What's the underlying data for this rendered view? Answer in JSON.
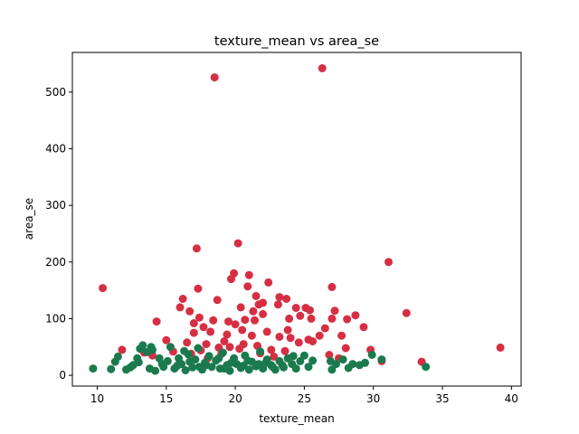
{
  "chart_data": {
    "type": "scatter",
    "title": "texture_mean vs area_se",
    "xlabel": "texture_mean",
    "ylabel": "area_se",
    "xlim": [
      8.2,
      40.7
    ],
    "ylim": [
      -19,
      570
    ],
    "xticks": [
      10,
      15,
      20,
      25,
      30,
      35,
      40
    ],
    "yticks": [
      0,
      100,
      200,
      300,
      400,
      500
    ],
    "grid": false,
    "series": [
      {
        "color": "#d62f43",
        "points": [
          [
            18.5,
            526
          ],
          [
            26.3,
            542
          ],
          [
            20.2,
            233
          ],
          [
            17.2,
            224
          ],
          [
            31.1,
            200
          ],
          [
            19.9,
            180
          ],
          [
            19.7,
            170
          ],
          [
            21.0,
            177
          ],
          [
            10.4,
            154
          ],
          [
            17.3,
            153
          ],
          [
            20.9,
            157
          ],
          [
            22.4,
            164
          ],
          [
            27.0,
            156
          ],
          [
            16.2,
            135
          ],
          [
            18.7,
            133
          ],
          [
            21.5,
            140
          ],
          [
            22.0,
            128
          ],
          [
            23.2,
            138
          ],
          [
            23.7,
            135
          ],
          [
            24.4,
            119
          ],
          [
            25.1,
            119
          ],
          [
            25.4,
            115
          ],
          [
            23.1,
            125
          ],
          [
            21.7,
            125
          ],
          [
            16.7,
            113
          ],
          [
            32.4,
            110
          ],
          [
            14.3,
            95
          ],
          [
            17.0,
            92
          ],
          [
            17.4,
            102
          ],
          [
            19.5,
            95
          ],
          [
            20.0,
            90
          ],
          [
            20.7,
            98
          ],
          [
            21.4,
            97
          ],
          [
            22.0,
            108
          ],
          [
            23.9,
            100
          ],
          [
            24.7,
            105
          ],
          [
            26.5,
            83
          ],
          [
            27.0,
            100
          ],
          [
            27.2,
            114
          ],
          [
            28.1,
            99
          ],
          [
            28.7,
            106
          ],
          [
            29.3,
            85
          ],
          [
            17.7,
            85
          ],
          [
            18.2,
            77
          ],
          [
            19.4,
            72
          ],
          [
            20.5,
            80
          ],
          [
            21.2,
            70
          ],
          [
            22.3,
            77
          ],
          [
            23.2,
            68
          ],
          [
            24.0,
            66
          ],
          [
            25.3,
            63
          ],
          [
            26.1,
            70
          ],
          [
            27.7,
            70
          ],
          [
            15.0,
            62
          ],
          [
            16.5,
            58
          ],
          [
            17.9,
            55
          ],
          [
            18.8,
            49
          ],
          [
            19.6,
            50
          ],
          [
            20.6,
            55
          ],
          [
            21.6,
            52
          ],
          [
            22.6,
            45
          ],
          [
            24.6,
            58
          ],
          [
            25.6,
            60
          ],
          [
            11.8,
            45
          ],
          [
            13.4,
            40
          ],
          [
            15.5,
            42
          ],
          [
            16.8,
            38
          ],
          [
            17.5,
            44
          ],
          [
            19.0,
            38
          ],
          [
            20.3,
            47
          ],
          [
            21.8,
            39
          ],
          [
            23.6,
            43
          ],
          [
            26.8,
            36
          ],
          [
            28.0,
            48
          ],
          [
            29.8,
            45
          ],
          [
            30.6,
            25
          ],
          [
            33.5,
            24
          ],
          [
            39.2,
            49
          ],
          [
            14.0,
            35
          ],
          [
            18.0,
            30
          ],
          [
            22.8,
            33
          ],
          [
            27.5,
            30
          ],
          [
            16.0,
            120
          ],
          [
            20.4,
            120
          ],
          [
            21.3,
            113
          ],
          [
            25.5,
            100
          ],
          [
            18.4,
            97
          ],
          [
            17.0,
            75
          ],
          [
            23.8,
            80
          ],
          [
            19.2,
            60
          ]
        ]
      },
      {
        "color": "#1a7a4e",
        "points": [
          [
            9.7,
            12
          ],
          [
            11.0,
            11
          ],
          [
            11.3,
            24
          ],
          [
            11.5,
            33
          ],
          [
            12.1,
            10
          ],
          [
            12.6,
            18
          ],
          [
            13.0,
            23
          ],
          [
            13.1,
            47
          ],
          [
            13.3,
            53
          ],
          [
            13.6,
            41
          ],
          [
            13.9,
            50
          ],
          [
            14.2,
            8
          ],
          [
            14.5,
            30
          ],
          [
            14.8,
            15
          ],
          [
            15.1,
            25
          ],
          [
            15.3,
            50
          ],
          [
            15.6,
            12
          ],
          [
            15.9,
            30
          ],
          [
            16.1,
            20
          ],
          [
            16.4,
            9
          ],
          [
            16.6,
            37
          ],
          [
            16.9,
            14
          ],
          [
            17.1,
            28
          ],
          [
            17.3,
            48
          ],
          [
            17.6,
            10
          ],
          [
            17.8,
            22
          ],
          [
            18.1,
            34
          ],
          [
            18.3,
            15
          ],
          [
            18.6,
            26
          ],
          [
            18.9,
            12
          ],
          [
            19.1,
            40
          ],
          [
            19.4,
            18
          ],
          [
            19.6,
            8
          ],
          [
            19.9,
            30
          ],
          [
            20.1,
            20
          ],
          [
            20.4,
            13
          ],
          [
            20.7,
            35
          ],
          [
            21.0,
            10
          ],
          [
            21.2,
            24
          ],
          [
            21.5,
            16
          ],
          [
            21.8,
            42
          ],
          [
            22.0,
            12
          ],
          [
            22.3,
            28
          ],
          [
            22.6,
            18
          ],
          [
            22.9,
            10
          ],
          [
            23.2,
            25
          ],
          [
            23.5,
            14
          ],
          [
            23.8,
            30
          ],
          [
            24.1,
            20
          ],
          [
            24.4,
            12
          ],
          [
            24.7,
            25
          ],
          [
            25.0,
            35
          ],
          [
            25.3,
            15
          ],
          [
            25.6,
            26
          ],
          [
            27.0,
            10
          ],
          [
            27.3,
            20
          ],
          [
            27.8,
            28
          ],
          [
            28.2,
            13
          ],
          [
            29.0,
            18
          ],
          [
            29.4,
            22
          ],
          [
            29.9,
            36
          ],
          [
            30.6,
            28
          ],
          [
            33.8,
            15
          ],
          [
            12.4,
            14
          ],
          [
            13.8,
            12
          ],
          [
            14.7,
            20
          ],
          [
            15.8,
            17
          ],
          [
            16.7,
            24
          ],
          [
            17.9,
            18
          ],
          [
            18.8,
            30
          ],
          [
            19.7,
            22
          ],
          [
            20.9,
            26
          ],
          [
            22.2,
            22
          ],
          [
            23.4,
            18
          ],
          [
            24.2,
            34
          ],
          [
            26.9,
            25
          ],
          [
            28.5,
            20
          ],
          [
            14.0,
            45
          ],
          [
            12.9,
            30
          ],
          [
            16.3,
            43
          ],
          [
            17.4,
            15
          ],
          [
            19.2,
            12
          ],
          [
            20.6,
            17
          ],
          [
            21.7,
            20
          ],
          [
            22.7,
            15
          ]
        ]
      }
    ]
  }
}
